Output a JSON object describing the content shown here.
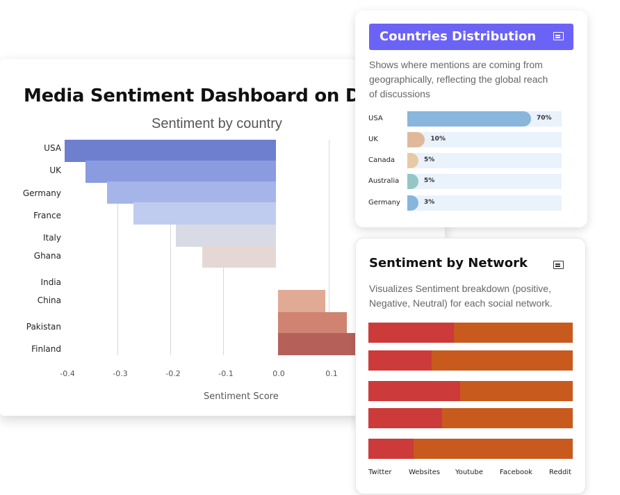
{
  "main": {
    "title": "Media Sentiment Dashboard on Dubai T",
    "chart_title": "Sentiment by country",
    "x_axis_label": "Sentiment Score"
  },
  "chart_data": [
    {
      "type": "bar",
      "orientation": "horizontal",
      "title": "Sentiment by country",
      "xlabel": "Sentiment Score",
      "categories": [
        "USA",
        "UK",
        "Germany",
        "France",
        "Italy",
        "Ghana",
        "India",
        "China",
        "Pakistan",
        "Finland"
      ],
      "values": [
        -0.4,
        -0.36,
        -0.32,
        -0.27,
        -0.19,
        -0.14,
        0.0,
        0.09,
        0.13,
        0.15
      ],
      "colors": [
        "#6f7fcf",
        "#8a9be0",
        "#a5b5ea",
        "#c0ccef",
        "#d8dbe5",
        "#e5d8d4",
        "#ffffff",
        "#e0aa94",
        "#cf8370",
        "#b5615a"
      ],
      "xticks": [
        "-0.4",
        "-0.3",
        "-0.2",
        "-0.1",
        "0.0",
        "0.1"
      ],
      "xlim": [
        -0.4,
        0.15
      ],
      "grid": true
    },
    {
      "type": "bar",
      "orientation": "horizontal",
      "title": "Countries Distribution",
      "categories": [
        "USA",
        "UK",
        "Canada",
        "Australia",
        "Germany"
      ],
      "values": [
        70,
        10,
        5,
        5,
        3
      ],
      "value_labels": [
        "70%",
        "10%",
        "5%",
        "5%",
        "3%"
      ],
      "colors": [
        "#88b6dc",
        "#dfb99a",
        "#e5cba5",
        "#94c6c5",
        "#86b5de"
      ]
    },
    {
      "type": "bar",
      "stacked": true,
      "orientation": "horizontal",
      "title": "Sentiment by Network",
      "categories": [
        "Twitter",
        "Websites",
        "Youtube",
        "Facebook",
        "Reddit"
      ],
      "series": [
        {
          "values": [
            0.42,
            0.31,
            0.45,
            0.36,
            0.22
          ],
          "color": "#cc3a3a"
        },
        {
          "values": [
            0.58,
            0.69,
            0.55,
            0.64,
            0.78
          ],
          "color": "#c85a1e"
        }
      ]
    }
  ],
  "distribution": {
    "title": "Countries Distribution",
    "description_lines": [
      "Shows where mentions are coming from",
      "geographically, reflecting the global reach",
      "of discussions"
    ],
    "icon": "document-icon"
  },
  "network": {
    "title": "Sentiment by Network",
    "description_lines": [
      "Visualizes Sentiment breakdown (positive,",
      "Negative, Neutral) for each social network."
    ],
    "icon": "document-icon"
  }
}
